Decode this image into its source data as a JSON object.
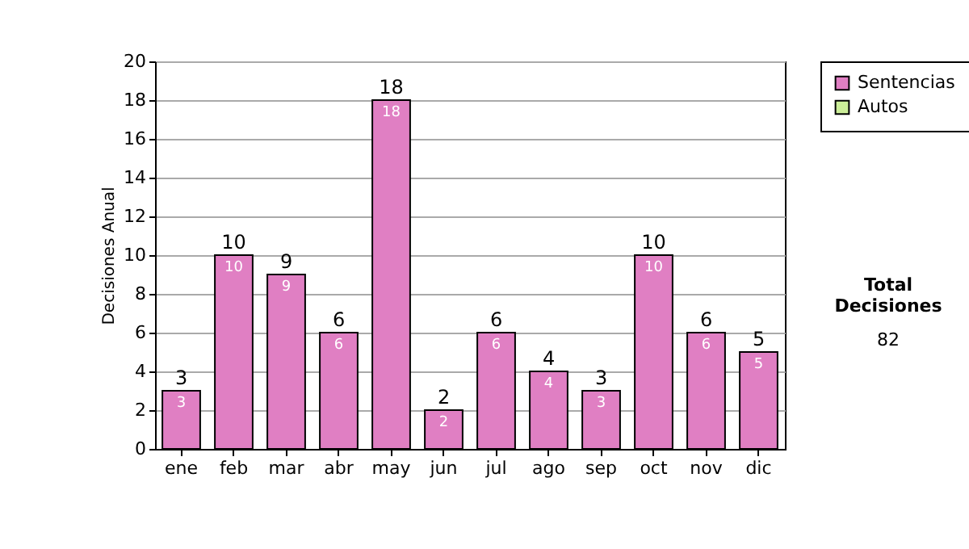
{
  "chart_data": {
    "type": "bar",
    "ylabel": "Decisiones Anual",
    "categories": [
      "ene",
      "feb",
      "mar",
      "abr",
      "may",
      "jun",
      "jul",
      "ago",
      "sep",
      "oct",
      "nov",
      "dic"
    ],
    "series": [
      {
        "name": "Sentencias",
        "color": "#e07fc3",
        "values": [
          3,
          10,
          9,
          6,
          18,
          2,
          6,
          4,
          3,
          10,
          6,
          5
        ]
      },
      {
        "name": "Autos",
        "color": "#ccee99",
        "values": [
          null,
          null,
          null,
          null,
          null,
          null,
          null,
          null,
          null,
          null,
          null,
          null
        ]
      }
    ],
    "stacked": true,
    "data_labels": true,
    "totals": [
      "3",
      "10",
      "9",
      "6",
      "18",
      "2",
      "6",
      "4",
      "3",
      "10",
      "6",
      "5"
    ],
    "ylim": [
      0,
      20
    ],
    "yticks": [
      0,
      2,
      4,
      6,
      8,
      10,
      12,
      14,
      16,
      18,
      20
    ],
    "grid": "y",
    "legend": "right",
    "annotations": [
      "Total Decisiones",
      "82"
    ]
  }
}
